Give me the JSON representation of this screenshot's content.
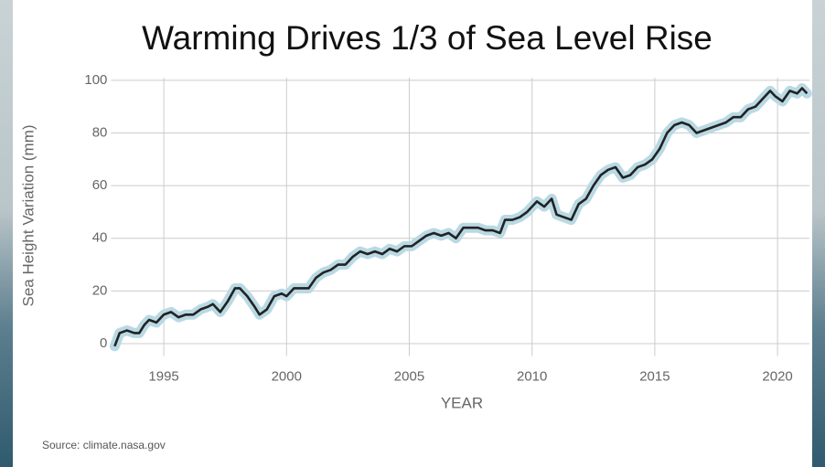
{
  "chart_data": {
    "type": "line",
    "title": "Warming Drives 1/3 of Sea Level Rise",
    "x_label": "YEAR",
    "y_label": "Sea Height Variation (mm)",
    "source": "Source: climate.nasa.gov",
    "x": [
      1993.0,
      1993.2,
      1993.5,
      1993.8,
      1994.0,
      1994.2,
      1994.4,
      1994.7,
      1995.0,
      1995.3,
      1995.6,
      1995.9,
      1996.2,
      1996.5,
      1996.8,
      1997.0,
      1997.3,
      1997.6,
      1997.9,
      1998.1,
      1998.4,
      1998.7,
      1998.9,
      1999.2,
      1999.5,
      1999.8,
      2000.0,
      2000.3,
      2000.6,
      2000.9,
      2001.2,
      2001.5,
      2001.8,
      2002.1,
      2002.4,
      2002.7,
      2003.0,
      2003.3,
      2003.6,
      2003.9,
      2004.2,
      2004.5,
      2004.8,
      2005.1,
      2005.4,
      2005.7,
      2006.0,
      2006.3,
      2006.6,
      2006.9,
      2007.2,
      2007.5,
      2007.8,
      2008.1,
      2008.4,
      2008.7,
      2008.9,
      2009.2,
      2009.5,
      2009.8,
      2010.0,
      2010.2,
      2010.5,
      2010.8,
      2011.0,
      2011.3,
      2011.6,
      2011.9,
      2012.2,
      2012.5,
      2012.8,
      2013.1,
      2013.4,
      2013.7,
      2014.0,
      2014.3,
      2014.6,
      2014.9,
      2015.2,
      2015.5,
      2015.8,
      2016.1,
      2016.4,
      2016.7,
      2017.0,
      2017.3,
      2017.6,
      2017.9,
      2018.2,
      2018.5,
      2018.8,
      2019.1,
      2019.4,
      2019.7,
      2019.9,
      2020.2,
      2020.5,
      2020.8,
      2021.0,
      2021.2
    ],
    "series": [
      {
        "name": "Sea Height Variation",
        "color": "#222222",
        "band_color": "#b9d9e4",
        "values": [
          -1,
          4,
          5,
          4,
          4,
          7,
          9,
          8,
          11,
          12,
          10,
          11,
          11,
          13,
          14,
          15,
          12,
          16,
          21,
          21,
          18,
          14,
          11,
          13,
          18,
          19,
          18,
          21,
          21,
          21,
          25,
          27,
          28,
          30,
          30,
          33,
          35,
          34,
          35,
          34,
          36,
          35,
          37,
          37,
          39,
          41,
          42,
          41,
          42,
          40,
          44,
          44,
          44,
          43,
          43,
          42,
          47,
          47,
          48,
          50,
          52,
          54,
          52,
          55,
          49,
          48,
          47,
          53,
          55,
          60,
          64,
          66,
          67,
          63,
          64,
          67,
          68,
          70,
          74,
          80,
          83,
          84,
          83,
          80,
          81,
          82,
          83,
          84,
          86,
          86,
          89,
          90,
          93,
          96,
          94,
          92,
          96,
          95,
          97,
          95
        ]
      }
    ],
    "xlim": [
      1993,
      2021.3
    ],
    "xticks": [
      1995,
      2000,
      2005,
      2010,
      2015,
      2020
    ],
    "ylim": [
      -3,
      101
    ],
    "yticks": [
      0,
      20,
      40,
      60,
      80,
      100
    ],
    "grid": true
  }
}
